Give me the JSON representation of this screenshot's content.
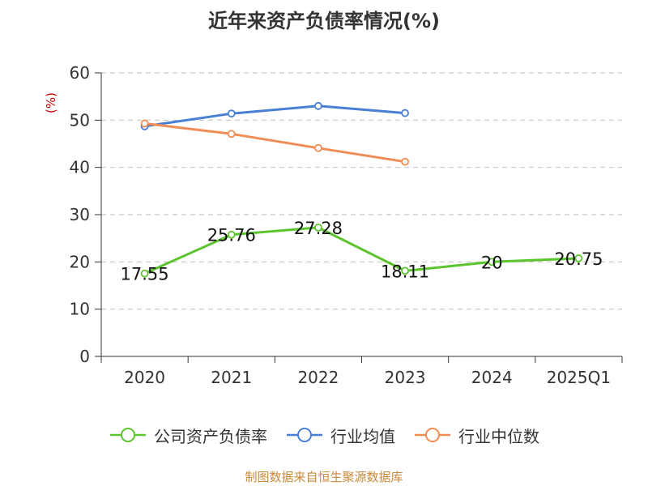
{
  "chart_data": {
    "type": "line",
    "title": "近年来资产负债率情况(%)",
    "ylabel": "(%)",
    "categories": [
      "2020",
      "2021",
      "2022",
      "2023",
      "2024",
      "2025Q1"
    ],
    "ylim": [
      0,
      60
    ],
    "yticks": [
      0,
      10,
      20,
      30,
      40,
      50,
      60
    ],
    "grid": true,
    "legend_position": "bottom",
    "series": [
      {
        "name": "公司资产负债率",
        "color": "#5cc42e",
        "values": [
          17.55,
          25.76,
          27.28,
          18.11,
          20,
          20.75
        ],
        "labels": [
          "17.55",
          "25.76",
          "27.28",
          "18.11",
          "20",
          "20.75"
        ]
      },
      {
        "name": "行业均值",
        "color": "#4a7fd6",
        "values": [
          48.7,
          51.4,
          53.0,
          51.5,
          null,
          null
        ]
      },
      {
        "name": "行业中位数",
        "color": "#f28c55",
        "values": [
          49.3,
          47.1,
          44.1,
          41.2,
          null,
          null
        ]
      }
    ]
  },
  "source": "制图数据来自恒生聚源数据库"
}
